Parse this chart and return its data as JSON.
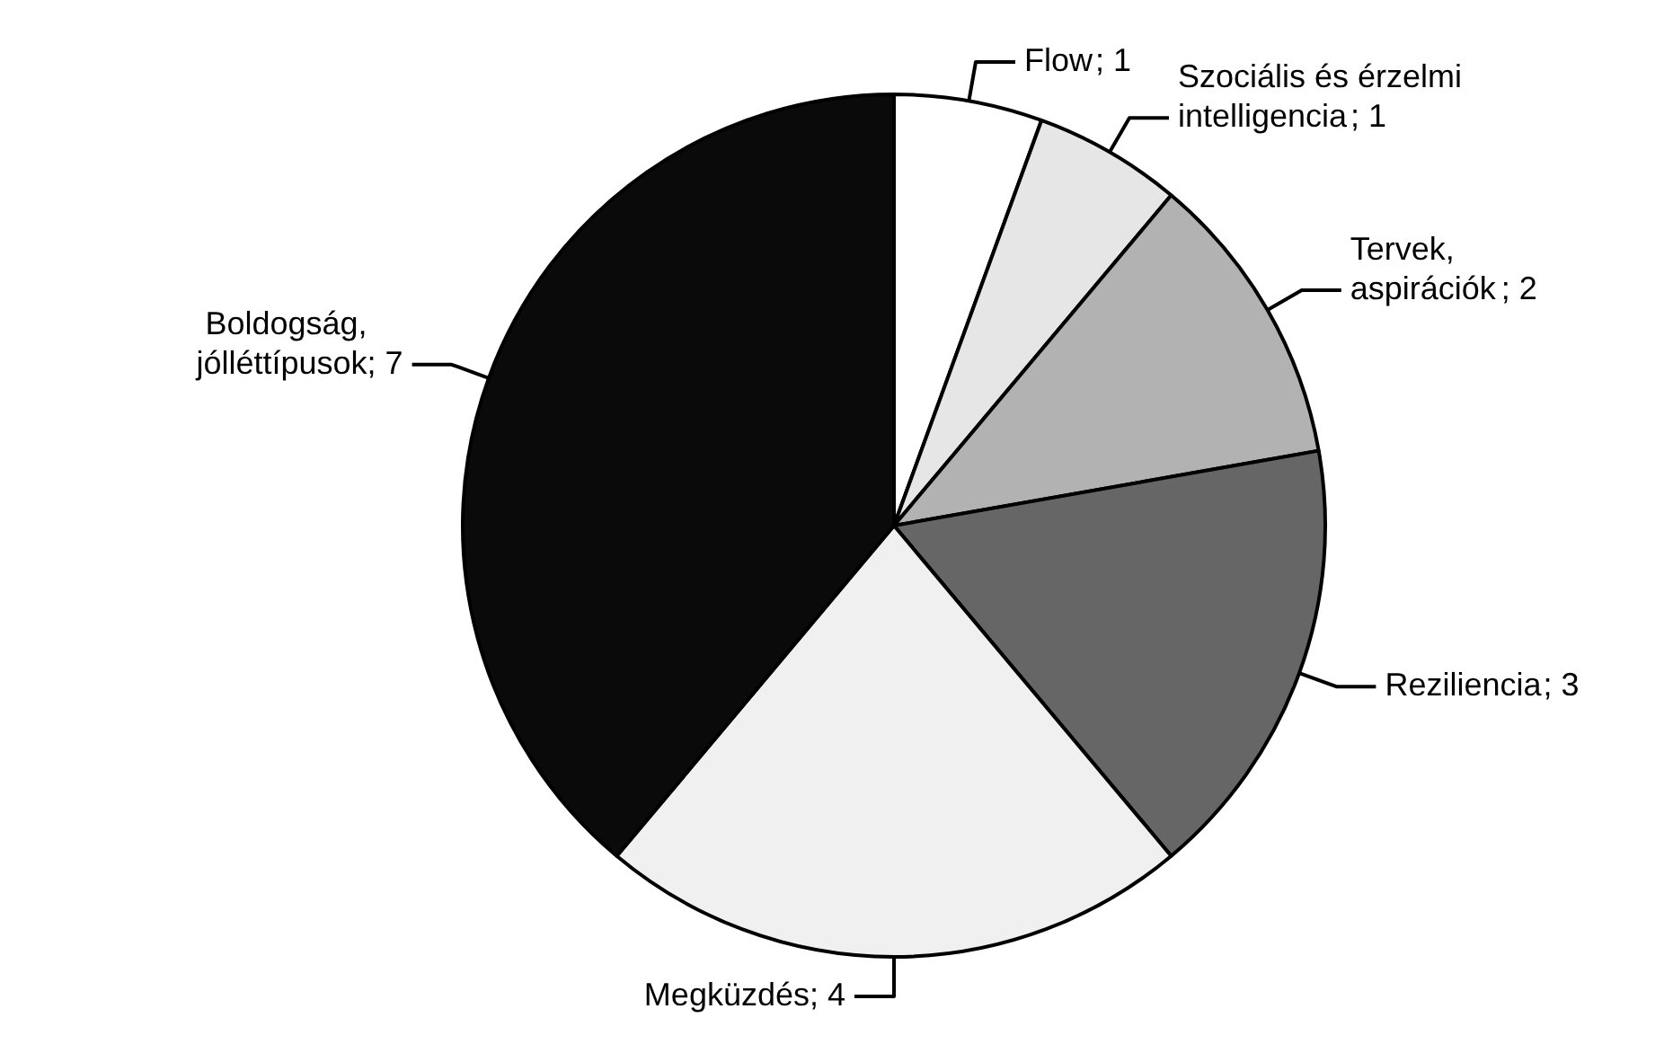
{
  "chart_data": {
    "type": "pie",
    "categories": [
      "Flow",
      "Szociális és érzelmi\nintelligencia",
      "Tervek,\naspirációk",
      "Reziliencia",
      "Megküzdés",
      "Boldogság,\njólléttípusok"
    ],
    "values": [
      1,
      1,
      2,
      3,
      4,
      7
    ],
    "colors": [
      "#ffffff",
      "#e6e6e6",
      "#b2b2b2",
      "#666666",
      "#f0f0f0",
      "#0a0a0a"
    ],
    "value_labels": [
      "; 1",
      "; 1",
      "; 2",
      "; 3",
      "; 4",
      "; 7"
    ]
  }
}
